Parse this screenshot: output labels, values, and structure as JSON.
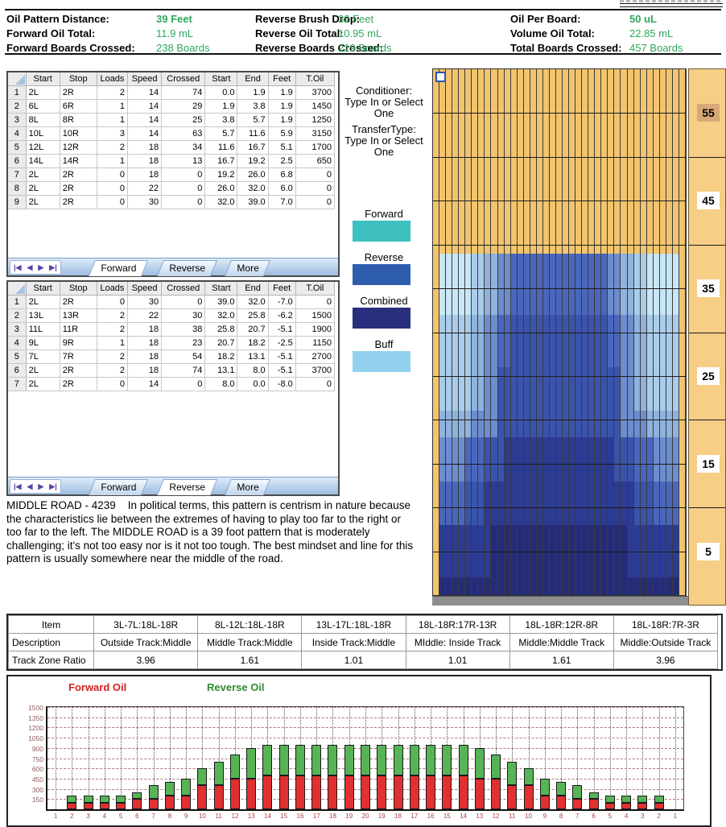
{
  "header": {
    "value_color": "#2fa75c",
    "stats": [
      {
        "label": "Oil Pattern Distance:",
        "value": "39 Feet",
        "bold": true
      },
      {
        "label": "Forward Oil Total:",
        "value": "11.9 mL",
        "bold": false
      },
      {
        "label": "Forward Boards Crossed:",
        "value": "238 Boards",
        "bold": false
      },
      {
        "label": "Reverse Brush Drop:",
        "value": "32 Feet",
        "bold": false
      },
      {
        "label": "Reverse Oil Total:",
        "value": "10.95 mL",
        "bold": false
      },
      {
        "label": "Reverse Boards Crossed:",
        "value": "219 Boards",
        "bold": false
      },
      {
        "label": "Oil Per Board:",
        "value": "50 uL",
        "bold": true
      },
      {
        "label": "Volume Oil Total:",
        "value": "22.85 mL",
        "bold": false
      },
      {
        "label": "Total Boards Crossed:",
        "value": "457 Boards",
        "bold": false
      }
    ]
  },
  "tables": {
    "columns": [
      "Start",
      "Stop",
      "Loads",
      "Speed",
      "Crossed",
      "Start",
      "End",
      "Feet",
      "T.Oil"
    ],
    "tabs": [
      "Forward",
      "Reverse",
      "More"
    ],
    "forward": {
      "active_tab": "Forward",
      "rows": [
        [
          "2L",
          "2R",
          "2",
          "14",
          "74",
          "0.0",
          "1.9",
          "1.9",
          "3700"
        ],
        [
          "6L",
          "6R",
          "1",
          "14",
          "29",
          "1.9",
          "3.8",
          "1.9",
          "1450"
        ],
        [
          "8L",
          "8R",
          "1",
          "14",
          "25",
          "3.8",
          "5.7",
          "1.9",
          "1250"
        ],
        [
          "10L",
          "10R",
          "3",
          "14",
          "63",
          "5.7",
          "11.6",
          "5.9",
          "3150"
        ],
        [
          "12L",
          "12R",
          "2",
          "18",
          "34",
          "11.6",
          "16.7",
          "5.1",
          "1700"
        ],
        [
          "14L",
          "14R",
          "1",
          "18",
          "13",
          "16.7",
          "19.2",
          "2.5",
          "650"
        ],
        [
          "2L",
          "2R",
          "0",
          "18",
          "0",
          "19.2",
          "26.0",
          "6.8",
          "0"
        ],
        [
          "2L",
          "2R",
          "0",
          "22",
          "0",
          "26.0",
          "32.0",
          "6.0",
          "0"
        ],
        [
          "2L",
          "2R",
          "0",
          "30",
          "0",
          "32.0",
          "39.0",
          "7.0",
          "0"
        ]
      ]
    },
    "reverse": {
      "active_tab": "Reverse",
      "rows": [
        [
          "2L",
          "2R",
          "0",
          "30",
          "0",
          "39.0",
          "32.0",
          "-7.0",
          "0"
        ],
        [
          "13L",
          "13R",
          "2",
          "22",
          "30",
          "32.0",
          "25.8",
          "-6.2",
          "1500"
        ],
        [
          "11L",
          "11R",
          "2",
          "18",
          "38",
          "25.8",
          "20.7",
          "-5.1",
          "1900"
        ],
        [
          "9L",
          "9R",
          "1",
          "18",
          "23",
          "20.7",
          "18.2",
          "-2.5",
          "1150"
        ],
        [
          "7L",
          "7R",
          "2",
          "18",
          "54",
          "18.2",
          "13.1",
          "-5.1",
          "2700"
        ],
        [
          "2L",
          "2R",
          "2",
          "18",
          "74",
          "13.1",
          "8.0",
          "-5.1",
          "3700"
        ],
        [
          "2L",
          "2R",
          "0",
          "14",
          "0",
          "8.0",
          "0.0",
          "-8.0",
          "0"
        ]
      ]
    }
  },
  "side_panel": {
    "conditioner_title": "Conditioner:",
    "conditioner_value": "Type In or Select One",
    "transfer_title": "TransferType:",
    "transfer_value": "Type In or Select One",
    "legend": [
      {
        "label": "Forward",
        "color": "#3fc0c0"
      },
      {
        "label": "Reverse",
        "color": "#2e5dae"
      },
      {
        "label": "Combined",
        "color": "#292f7d"
      },
      {
        "label": "Buff",
        "color": "#92d2ef"
      }
    ]
  },
  "lane": {
    "boards": 39,
    "length_feet": 60,
    "palette": {
      "tan": "#F2C46D",
      "buff1": "#C8E7F6",
      "buff2": "#A9CCEA",
      "mb1": "#8FB3DE",
      "mb2": "#6C8DCE",
      "blue": "#4A67BD",
      "dblue": "#3A53AC",
      "navy": "#2C3B94",
      "dnavy": "#242C78"
    },
    "bands": [
      {
        "from": 32,
        "to": 39,
        "stops": [
          [
            1,
            "tan"
          ],
          [
            6,
            "buff1"
          ],
          [
            8,
            "buff2"
          ],
          [
            10,
            "mb1"
          ],
          [
            12,
            "mb2"
          ],
          [
            20,
            "blue"
          ]
        ]
      },
      {
        "from": 26,
        "to": 32,
        "stops": [
          [
            1,
            "tan"
          ],
          [
            6,
            "buff2"
          ],
          [
            8,
            "mb1"
          ],
          [
            10,
            "mb2"
          ],
          [
            12,
            "blue"
          ],
          [
            20,
            "dblue"
          ]
        ]
      },
      {
        "from": 21,
        "to": 26,
        "stops": [
          [
            1,
            "tan"
          ],
          [
            6,
            "buff2"
          ],
          [
            8,
            "mb1"
          ],
          [
            10,
            "mb2"
          ],
          [
            20,
            "dblue"
          ]
        ]
      },
      {
        "from": 18,
        "to": 21,
        "stops": [
          [
            1,
            "tan"
          ],
          [
            6,
            "mb1"
          ],
          [
            8,
            "mb2"
          ],
          [
            10,
            "mb2"
          ],
          [
            20,
            "dblue"
          ]
        ]
      },
      {
        "from": 13,
        "to": 18,
        "stops": [
          [
            1,
            "tan"
          ],
          [
            5,
            "mb2"
          ],
          [
            8,
            "blue"
          ],
          [
            11,
            "dblue"
          ],
          [
            20,
            "navy"
          ]
        ]
      },
      {
        "from": 8,
        "to": 13,
        "stops": [
          [
            1,
            "tan"
          ],
          [
            5,
            "blue"
          ],
          [
            8,
            "dblue"
          ],
          [
            20,
            "navy"
          ]
        ]
      },
      {
        "from": 2,
        "to": 8,
        "stops": [
          [
            1,
            "tan"
          ],
          [
            9,
            "navy"
          ],
          [
            20,
            "dnavy"
          ]
        ]
      },
      {
        "from": 0,
        "to": 2,
        "stops": [
          [
            1,
            "tan"
          ],
          [
            20,
            "dnavy"
          ]
        ]
      }
    ],
    "distance_markers": [
      {
        "ft": 55,
        "label": "55",
        "bg": "#d8a878"
      },
      {
        "ft": 45,
        "label": "45",
        "bg": "#ffffff"
      },
      {
        "ft": 35,
        "label": "35",
        "bg": "#ffffff"
      },
      {
        "ft": 25,
        "label": "25",
        "bg": "#ffffff"
      },
      {
        "ft": 15,
        "label": "15",
        "bg": "#ffffff"
      },
      {
        "ft": 5,
        "label": "5",
        "bg": "#ffffff"
      }
    ]
  },
  "description": "MIDDLE ROAD - 4239    In political terms, this pattern is centrism in nature because the characteristics lie between the extremes of having to play too far to the right or too far to the left. The MIDDLE ROAD is a 39 foot pattern that is moderately challenging; it's not too easy nor is it not too tough. The best mindset and line for this pattern is usually somewhere near the middle of the road.",
  "ratio_table": {
    "row_headers": [
      "Item",
      "Description",
      "Track Zone Ratio"
    ],
    "items": [
      "3L-7L:18L-18R",
      "8L-12L:18L-18R",
      "13L-17L:18L-18R",
      "18L-18R:17R-13R",
      "18L-18R:12R-8R",
      "18L-18R:7R-3R"
    ],
    "descriptions": [
      "Outside Track:Middle",
      "Middle Track:Middle",
      "Inside Track:Middle",
      "MIddle: Inside Track",
      "Middle:Middle Track",
      "Middle:Outside Track"
    ],
    "ratios": [
      "3.96",
      "1.61",
      "1.01",
      "1.01",
      "1.61",
      "3.96"
    ]
  },
  "chart_data": {
    "type": "bar",
    "stacked": true,
    "legend": [
      {
        "label": "Forward Oil",
        "color": "#d42020"
      },
      {
        "label": "Reverse Oil",
        "color": "#2e8b2e"
      }
    ],
    "x_labels": [
      1,
      2,
      3,
      4,
      5,
      6,
      7,
      8,
      9,
      10,
      11,
      12,
      13,
      14,
      15,
      16,
      17,
      18,
      19,
      20,
      19,
      18,
      17,
      16,
      15,
      14,
      13,
      12,
      11,
      10,
      9,
      8,
      7,
      6,
      5,
      4,
      3,
      2,
      1
    ],
    "series": [
      {
        "name": "Forward Oil",
        "color": "#e03030",
        "values": [
          0,
          100,
          100,
          100,
          100,
          150,
          150,
          200,
          200,
          350,
          350,
          450,
          450,
          500,
          500,
          500,
          500,
          500,
          500,
          500,
          500,
          500,
          500,
          500,
          500,
          500,
          450,
          450,
          350,
          350,
          200,
          200,
          150,
          150,
          100,
          100,
          100,
          100,
          0
        ]
      },
      {
        "name": "Reverse Oil",
        "color": "#56b456",
        "values": [
          0,
          100,
          100,
          100,
          100,
          100,
          200,
          200,
          250,
          250,
          350,
          350,
          450,
          450,
          450,
          450,
          450,
          450,
          450,
          450,
          450,
          450,
          450,
          450,
          450,
          450,
          450,
          350,
          350,
          250,
          250,
          200,
          200,
          100,
          100,
          100,
          100,
          100,
          0
        ]
      }
    ],
    "ylim": [
      0,
      1500
    ],
    "ytick_step": 150,
    "grid": true,
    "legend_position": "top-left"
  }
}
